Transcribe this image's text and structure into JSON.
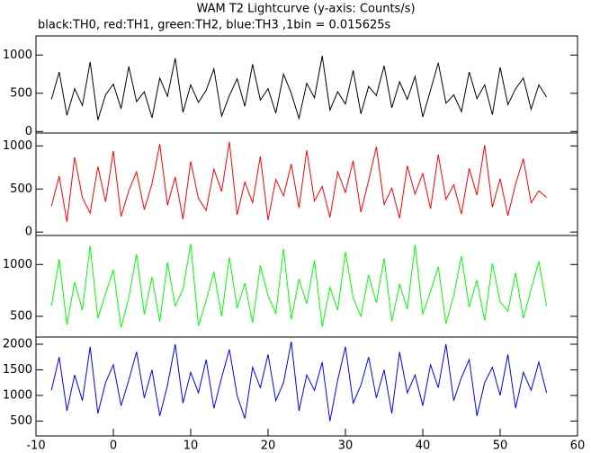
{
  "chart_data": [
    {
      "type": "line",
      "title": "WAM T2 Lightcurve (y-axis: Counts/s)",
      "subtitle": "black:TH0, red:TH1, green:TH2, blue:TH3 ,1bin = 0.015625s",
      "color": "#000000",
      "x": [
        -8,
        -7,
        -6,
        -5,
        -4,
        -3,
        -2,
        -1,
        0,
        1,
        2,
        3,
        4,
        5,
        6,
        7,
        8,
        9,
        10,
        11,
        12,
        13,
        14,
        15,
        16,
        17,
        18,
        19,
        20,
        21,
        22,
        23,
        24,
        25,
        26,
        27,
        28,
        29,
        30,
        31,
        32,
        33,
        34,
        35,
        36,
        37,
        38,
        39,
        40,
        41,
        42,
        43,
        44,
        45,
        46,
        47,
        48,
        49,
        50,
        51,
        52,
        53,
        54,
        55,
        56
      ],
      "values": [
        420,
        780,
        210,
        560,
        340,
        910,
        150,
        480,
        620,
        300,
        850,
        390,
        520,
        180,
        700,
        460,
        960,
        250,
        610,
        380,
        540,
        820,
        200,
        470,
        690,
        330,
        880,
        410,
        560,
        240,
        750,
        500,
        170,
        630,
        440,
        990,
        280,
        520,
        360,
        800,
        230,
        590,
        470,
        860,
        310,
        650,
        420,
        720,
        190,
        540,
        900,
        370,
        480,
        260,
        780,
        430,
        610,
        220,
        840,
        350,
        560,
        700,
        290,
        610,
        450
      ],
      "xlim": [
        -10,
        60
      ],
      "ylim": [
        -20,
        1250
      ],
      "yticks": [
        0,
        500,
        1000
      ]
    },
    {
      "type": "line",
      "color": "#ff0000",
      "x": [
        -8,
        -7,
        -6,
        -5,
        -4,
        -3,
        -2,
        -1,
        0,
        1,
        2,
        3,
        4,
        5,
        6,
        7,
        8,
        9,
        10,
        11,
        12,
        13,
        14,
        15,
        16,
        17,
        18,
        19,
        20,
        21,
        22,
        23,
        24,
        25,
        26,
        27,
        28,
        29,
        30,
        31,
        32,
        33,
        34,
        35,
        36,
        37,
        38,
        39,
        40,
        41,
        42,
        43,
        44,
        45,
        46,
        47,
        48,
        49,
        50,
        51,
        52,
        53,
        54,
        55,
        56
      ],
      "values": [
        300,
        650,
        120,
        870,
        400,
        220,
        760,
        350,
        940,
        180,
        480,
        700,
        260,
        560,
        1020,
        310,
        640,
        150,
        820,
        390,
        250,
        730,
        470,
        1050,
        200,
        580,
        340,
        880,
        140,
        610,
        420,
        790,
        280,
        950,
        360,
        530,
        170,
        700,
        460,
        830,
        230,
        600,
        990,
        320,
        510,
        160,
        770,
        440,
        680,
        270,
        900,
        380,
        550,
        210,
        740,
        430,
        1010,
        290,
        620,
        190,
        560,
        850,
        340,
        480,
        400
      ],
      "xlim": [
        -10,
        60
      ],
      "ylim": [
        -40,
        1150
      ],
      "yticks": [
        0,
        500,
        1000
      ]
    },
    {
      "type": "line",
      "color": "#00ff00",
      "x": [
        -8,
        -7,
        -6,
        -5,
        -4,
        -3,
        -2,
        -1,
        0,
        1,
        2,
        3,
        4,
        5,
        6,
        7,
        8,
        9,
        10,
        11,
        12,
        13,
        14,
        15,
        16,
        17,
        18,
        19,
        20,
        21,
        22,
        23,
        24,
        25,
        26,
        27,
        28,
        29,
        30,
        31,
        32,
        33,
        34,
        35,
        36,
        37,
        38,
        39,
        40,
        41,
        42,
        43,
        44,
        45,
        46,
        47,
        48,
        49,
        50,
        51,
        52,
        53,
        54,
        55,
        56
      ],
      "values": [
        600,
        1050,
        420,
        830,
        560,
        1180,
        480,
        720,
        950,
        390,
        680,
        1100,
        520,
        880,
        450,
        1020,
        600,
        760,
        1200,
        410,
        650,
        930,
        500,
        1070,
        580,
        820,
        440,
        990,
        700,
        530,
        1150,
        470,
        860,
        620,
        1040,
        400,
        780,
        560,
        1120,
        680,
        500,
        900,
        630,
        1060,
        450,
        810,
        570,
        1190,
        520,
        740,
        980,
        430,
        700,
        1080,
        590,
        850,
        460,
        1010,
        640,
        550,
        920,
        480,
        760,
        1030,
        600
      ],
      "xlim": [
        -10,
        60
      ],
      "ylim": [
        300,
        1280
      ],
      "yticks": [
        500,
        1000
      ]
    },
    {
      "type": "line",
      "color": "#0000ff",
      "x": [
        -8,
        -7,
        -6,
        -5,
        -4,
        -3,
        -2,
        -1,
        0,
        1,
        2,
        3,
        4,
        5,
        6,
        7,
        8,
        9,
        10,
        11,
        12,
        13,
        14,
        15,
        16,
        17,
        18,
        19,
        20,
        21,
        22,
        23,
        24,
        25,
        26,
        27,
        28,
        29,
        30,
        31,
        32,
        33,
        34,
        35,
        36,
        37,
        38,
        39,
        40,
        41,
        42,
        43,
        44,
        45,
        46,
        47,
        48,
        49,
        50,
        51,
        52,
        53,
        54,
        55,
        56
      ],
      "values": [
        1100,
        1750,
        700,
        1400,
        900,
        1950,
        650,
        1250,
        1600,
        800,
        1300,
        1850,
        950,
        1500,
        600,
        1200,
        2000,
        850,
        1450,
        1050,
        1700,
        750,
        1350,
        1900,
        1000,
        550,
        1550,
        1150,
        1800,
        900,
        1250,
        2050,
        700,
        1400,
        1100,
        1650,
        500,
        1300,
        1950,
        850,
        1200,
        1750,
        950,
        1500,
        650,
        1850,
        1050,
        1400,
        800,
        1600,
        1150,
        2000,
        900,
        1350,
        1700,
        600,
        1250,
        1550,
        1000,
        1800,
        750,
        1450,
        1100,
        1650,
        1050
      ],
      "xlim": [
        -10,
        60
      ],
      "ylim": [
        210,
        2140
      ],
      "yticks": [
        500,
        1000,
        1500,
        2000
      ],
      "xticks": [
        -10,
        0,
        10,
        20,
        30,
        40,
        50,
        60
      ]
    }
  ]
}
